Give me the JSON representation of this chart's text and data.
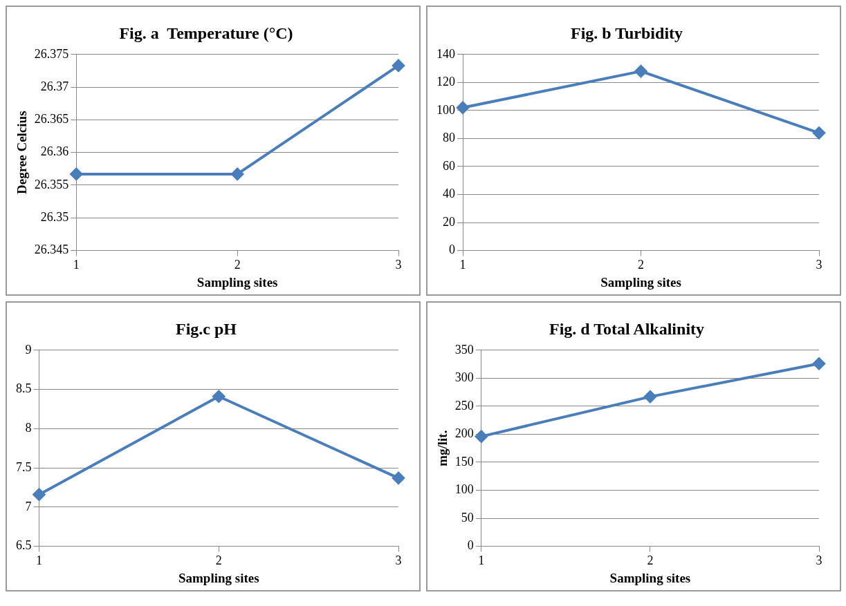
{
  "chart_data": [
    {
      "type": "line",
      "title": "Fig. a  Temperature (°C)",
      "xlabel": "Sampling sites",
      "ylabel": "Degree Celcius",
      "categories": [
        "1",
        "2",
        "3"
      ],
      "series": [
        {
          "color": "#4a7ebb",
          "values": [
            26.3567,
            26.3567,
            26.3733
          ]
        }
      ],
      "ylim": [
        26.345,
        26.375
      ],
      "yticks": [
        26.345,
        26.35,
        26.355,
        26.36,
        26.365,
        26.37,
        26.375
      ],
      "grid": "y",
      "marker": "diamond"
    },
    {
      "type": "line",
      "title": "Fig. b Turbidity",
      "xlabel": "Sampling sites",
      "categories": [
        "1",
        "2",
        "3"
      ],
      "series": [
        {
          "color": "#4a7ebb",
          "values": [
            102,
            128,
            84
          ]
        }
      ],
      "ylim": [
        0,
        140
      ],
      "yticks": [
        0,
        20,
        40,
        60,
        80,
        100,
        120,
        140
      ],
      "grid": "y",
      "marker": "diamond"
    },
    {
      "type": "line",
      "title": "Fig.c pH",
      "xlabel": "Sampling sites",
      "categories": [
        "1",
        "2",
        "3"
      ],
      "series": [
        {
          "color": "#4a7ebb",
          "values": [
            7.16,
            8.41,
            7.37
          ]
        }
      ],
      "ylim": [
        6.5,
        9
      ],
      "yticks": [
        6.5,
        7,
        7.5,
        8,
        8.5,
        9
      ],
      "grid": "y",
      "marker": "diamond"
    },
    {
      "type": "line",
      "title": "Fig. d Total Alkalinity",
      "xlabel": "Sampling sites",
      "ylabel": "mg/lit.",
      "categories": [
        "1",
        "2",
        "3"
      ],
      "series": [
        {
          "color": "#4a7ebb",
          "values": [
            196,
            267,
            326
          ]
        }
      ],
      "ylim": [
        0,
        350
      ],
      "yticks": [
        0,
        50,
        100,
        150,
        200,
        250,
        300,
        350
      ],
      "grid": "y",
      "marker": "diamond"
    }
  ]
}
